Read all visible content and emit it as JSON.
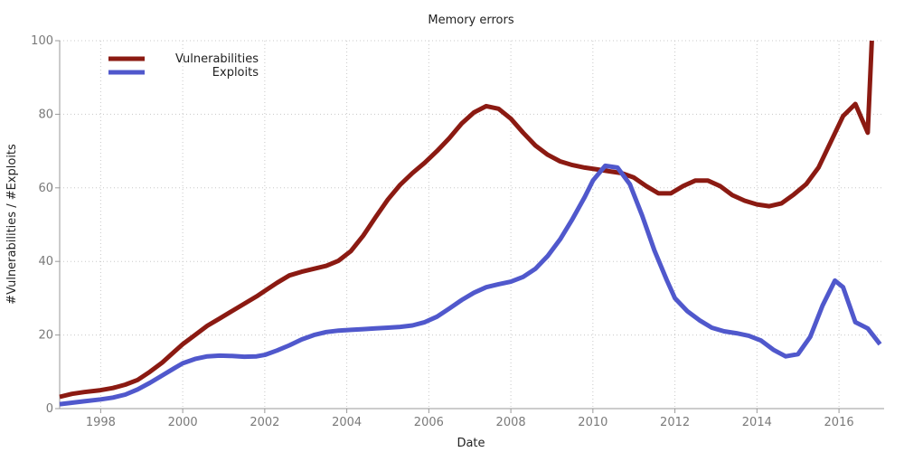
{
  "chart_data": {
    "type": "line",
    "title": "Memory errors",
    "xlabel": "Date",
    "ylabel": "#Vulnerabilities / #Exploits",
    "xlim": [
      1997.0,
      2017.1
    ],
    "ylim": [
      0,
      100
    ],
    "x_ticks": [
      "1998",
      "2000",
      "2002",
      "2004",
      "2006",
      "2008",
      "2010",
      "2012",
      "2014",
      "2016"
    ],
    "y_ticks": [
      "0",
      "20",
      "40",
      "60",
      "80",
      "100"
    ],
    "grid": true,
    "legend_position": "top-left",
    "series": [
      {
        "name": "Vulnerabilities",
        "color": "#8b1a12",
        "x": [
          1997.0,
          1997.3,
          1997.6,
          1998.0,
          1998.3,
          1998.6,
          1998.9,
          1999.2,
          1999.5,
          1999.8,
          2000.0,
          2000.3,
          2000.6,
          2000.9,
          2001.2,
          2001.5,
          2001.8,
          2002.0,
          2002.3,
          2002.6,
          2002.9,
          2003.2,
          2003.5,
          2003.8,
          2004.1,
          2004.4,
          2004.7,
          2005.0,
          2005.3,
          2005.6,
          2005.9,
          2006.2,
          2006.5,
          2006.8,
          2007.1,
          2007.4,
          2007.7,
          2008.0,
          2008.3,
          2008.6,
          2008.9,
          2009.2,
          2009.5,
          2009.8,
          2010.1,
          2010.4,
          2010.7,
          2011.0,
          2011.3,
          2011.6,
          2011.9,
          2012.2,
          2012.5,
          2012.8,
          2013.1,
          2013.4,
          2013.7,
          2014.0,
          2014.3,
          2014.6,
          2014.9,
          2015.2,
          2015.5,
          2015.8,
          2016.1,
          2016.4,
          2016.7,
          2016.8
        ],
        "values": [
          3.2,
          4.0,
          4.5,
          5.0,
          5.6,
          6.5,
          7.8,
          10.0,
          12.5,
          15.5,
          17.5,
          20.0,
          22.5,
          24.5,
          26.5,
          28.5,
          30.5,
          32.0,
          34.2,
          36.2,
          37.2,
          38.0,
          38.8,
          40.2,
          42.8,
          47.0,
          52.0,
          56.8,
          60.8,
          64.0,
          66.8,
          70.0,
          73.5,
          77.5,
          80.5,
          82.2,
          81.5,
          78.8,
          75.0,
          71.5,
          69.0,
          67.2,
          66.2,
          65.5,
          65.0,
          64.5,
          64.0,
          62.8,
          60.5,
          58.5,
          58.5,
          60.5,
          62.0,
          62.0,
          60.5,
          58.0,
          56.5,
          55.5,
          55.0,
          55.8,
          58.2,
          61.0,
          65.5,
          72.5,
          79.5,
          82.8,
          75.0,
          100.0
        ]
      },
      {
        "name": "Exploits",
        "color": "#5058cc",
        "x": [
          1997.0,
          1997.3,
          1997.6,
          1998.0,
          1998.3,
          1998.6,
          1998.9,
          1999.2,
          1999.5,
          1999.8,
          2000.0,
          2000.3,
          2000.6,
          2000.9,
          2001.2,
          2001.5,
          2001.8,
          2002.0,
          2002.3,
          2002.6,
          2002.9,
          2003.2,
          2003.5,
          2003.8,
          2004.1,
          2004.4,
          2004.7,
          2005.0,
          2005.3,
          2005.6,
          2005.9,
          2006.2,
          2006.5,
          2006.8,
          2007.1,
          2007.4,
          2007.7,
          2008.0,
          2008.3,
          2008.6,
          2008.9,
          2009.2,
          2009.5,
          2009.8,
          2010.0,
          2010.3,
          2010.6,
          2010.9,
          2011.2,
          2011.5,
          2011.8,
          2012.0,
          2012.3,
          2012.6,
          2012.9,
          2013.2,
          2013.5,
          2013.8,
          2014.1,
          2014.4,
          2014.7,
          2015.0,
          2015.3,
          2015.6,
          2015.9,
          2016.1,
          2016.4,
          2016.7,
          2017.0
        ],
        "values": [
          1.2,
          1.6,
          2.0,
          2.5,
          3.0,
          3.8,
          5.2,
          7.0,
          9.0,
          11.0,
          12.3,
          13.5,
          14.2,
          14.4,
          14.3,
          14.1,
          14.2,
          14.6,
          15.8,
          17.2,
          18.8,
          20.0,
          20.8,
          21.2,
          21.4,
          21.6,
          21.8,
          22.0,
          22.2,
          22.6,
          23.5,
          25.0,
          27.2,
          29.5,
          31.5,
          33.0,
          33.8,
          34.5,
          35.8,
          38.0,
          41.5,
          46.0,
          51.5,
          57.5,
          62.0,
          66.0,
          65.5,
          61.0,
          52.5,
          43.0,
          35.0,
          30.0,
          26.5,
          24.0,
          22.0,
          21.0,
          20.5,
          19.8,
          18.5,
          16.0,
          14.2,
          14.8,
          19.5,
          28.0,
          34.8,
          33.0,
          23.5,
          21.8,
          17.5
        ]
      }
    ]
  }
}
